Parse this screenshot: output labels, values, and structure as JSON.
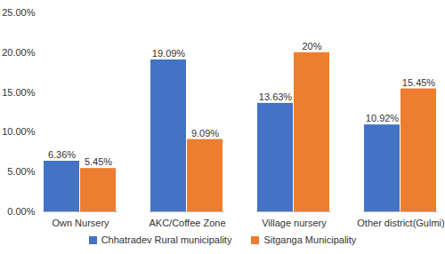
{
  "chart_data": {
    "type": "bar",
    "categories": [
      "Own Nursery",
      "AKC/Coffee Zone",
      "Village nursery",
      "Other district(Gulmi)"
    ],
    "series": [
      {
        "name": "Chhatradev Rural municipality",
        "color": "#4472c4",
        "values": [
          6.36,
          19.09,
          13.63,
          10.92
        ],
        "value_labels": [
          "6.36%",
          "19.09%",
          "13.63%",
          "10.92%"
        ]
      },
      {
        "name": "Sitganga Municipality",
        "color": "#ed7d31",
        "values": [
          5.45,
          9.09,
          20,
          15.45
        ],
        "value_labels": [
          "5.45%",
          "9.09%",
          "20%",
          "15.45%"
        ]
      }
    ],
    "ylim": [
      0,
      25
    ],
    "yticks": [
      {
        "value": 0,
        "label": "0.00%"
      },
      {
        "value": 5,
        "label": "5.00%"
      },
      {
        "value": 10,
        "label": "10.00%"
      },
      {
        "value": 15,
        "label": "15.00%"
      },
      {
        "value": 20,
        "label": "20.00%"
      },
      {
        "value": 25,
        "label": "25.00%"
      }
    ],
    "grid": false,
    "legend": "bottom",
    "data_labels": true
  }
}
